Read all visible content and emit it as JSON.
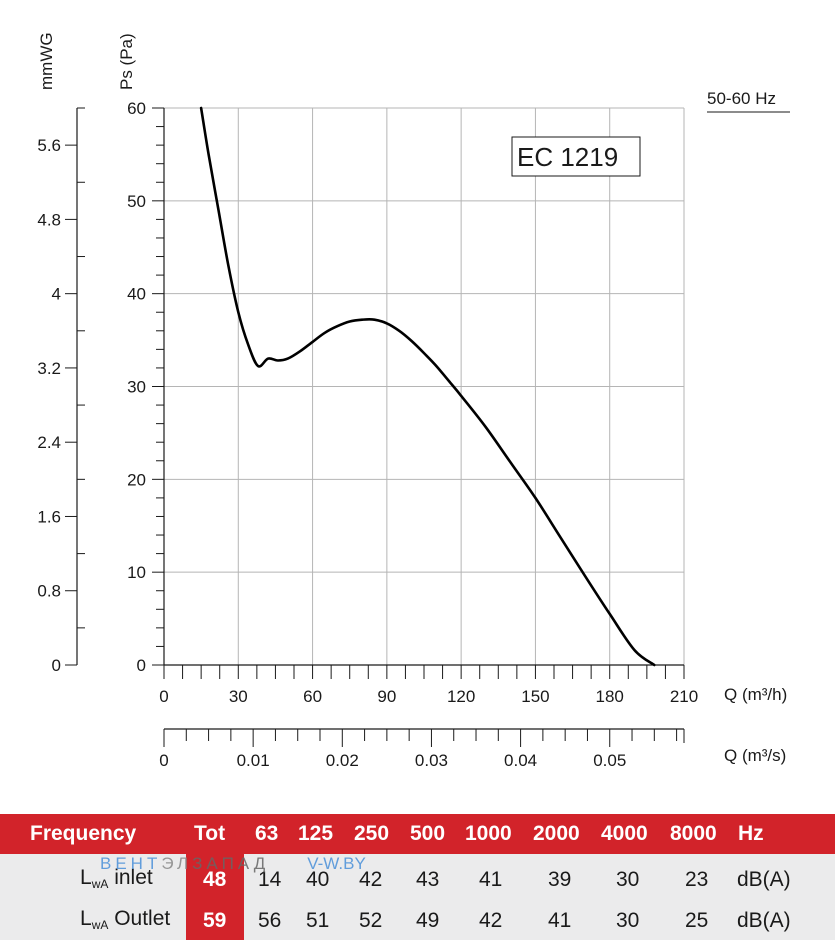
{
  "chart_data": {
    "type": "line",
    "legend_label": "EC 1219",
    "frequency_label": "50-60 Hz",
    "y_left_title": "mmWG",
    "y_right_title": "Ps (Pa)",
    "x_top_title": "Q (m³/h)",
    "x_bottom_title": "Q (m³/s)",
    "ylim": [
      0,
      60
    ],
    "xlim": [
      0,
      210
    ],
    "mmwg_lim": [
      0,
      6
    ],
    "x_ticks": [
      0,
      30,
      60,
      90,
      120,
      150,
      180,
      210
    ],
    "y_ticks": [
      0,
      10,
      20,
      30,
      40,
      50,
      60
    ],
    "mmwg_ticks": [
      "0",
      "0.8",
      "1.6",
      "2.4",
      "3.2",
      "4",
      "4.8",
      "5.6"
    ],
    "mmwg_values": [
      0,
      0.8,
      1.6,
      2.4,
      3.2,
      4,
      4.8,
      5.6
    ],
    "x_m3s_ticks": [
      "0",
      "0.01",
      "0.02",
      "0.03",
      "0.04",
      "0.05"
    ],
    "x_m3s_values": [
      0,
      0.01,
      0.02,
      0.03,
      0.04,
      0.05
    ],
    "x_m3s_max": 0.05833,
    "grid": true,
    "series": [
      {
        "x": [
          15,
          18,
          22,
          26,
          30,
          34,
          38,
          42,
          46,
          50,
          55,
          60,
          65,
          70,
          75,
          80,
          85,
          90,
          95,
          100,
          105,
          110,
          115,
          120,
          130,
          140,
          150,
          160,
          170,
          180,
          190,
          198
        ],
        "y": [
          60,
          55,
          49,
          43,
          38,
          34.5,
          32.2,
          33,
          32.8,
          33,
          33.8,
          34.8,
          35.8,
          36.5,
          37.0,
          37.2,
          37.2,
          36.8,
          36.0,
          34.9,
          33.6,
          32.2,
          30.6,
          29.0,
          25.6,
          21.8,
          18.0,
          13.8,
          9.6,
          5.5,
          1.6,
          0
        ]
      }
    ]
  },
  "sound_table": {
    "header": {
      "title": "Frequency",
      "tot": "Tot",
      "bands": [
        "63",
        "125",
        "250",
        "500",
        "1000",
        "2000",
        "4000",
        "8000"
      ],
      "unit": "Hz"
    },
    "inlet": {
      "label": "L",
      "label_sub": "wA",
      "label_suffix": " inlet",
      "tot": "48",
      "values": [
        "14",
        "40",
        "42",
        "43",
        "41",
        "39",
        "30",
        "23"
      ],
      "unit": "dB(A)"
    },
    "outlet": {
      "label": "L",
      "label_sub": "wA",
      "label_suffix": " Outlet",
      "tot": "59",
      "values": [
        "56",
        "51",
        "52",
        "49",
        "42",
        "41",
        "30",
        "25"
      ],
      "unit": "dB(A)"
    },
    "watermark": {
      "part1": "ВЕНТ",
      "part2": "ЭЛ",
      "part3": "ЗАПАД",
      "part4": "V-W.BY"
    }
  },
  "colors": {
    "accent_red": "#d2232a",
    "row_bg": "#ebebec",
    "grid": "#b5b5b5",
    "curve": "#000000",
    "watermark_blue": "#4a90d9",
    "watermark_gray": "#888888"
  }
}
